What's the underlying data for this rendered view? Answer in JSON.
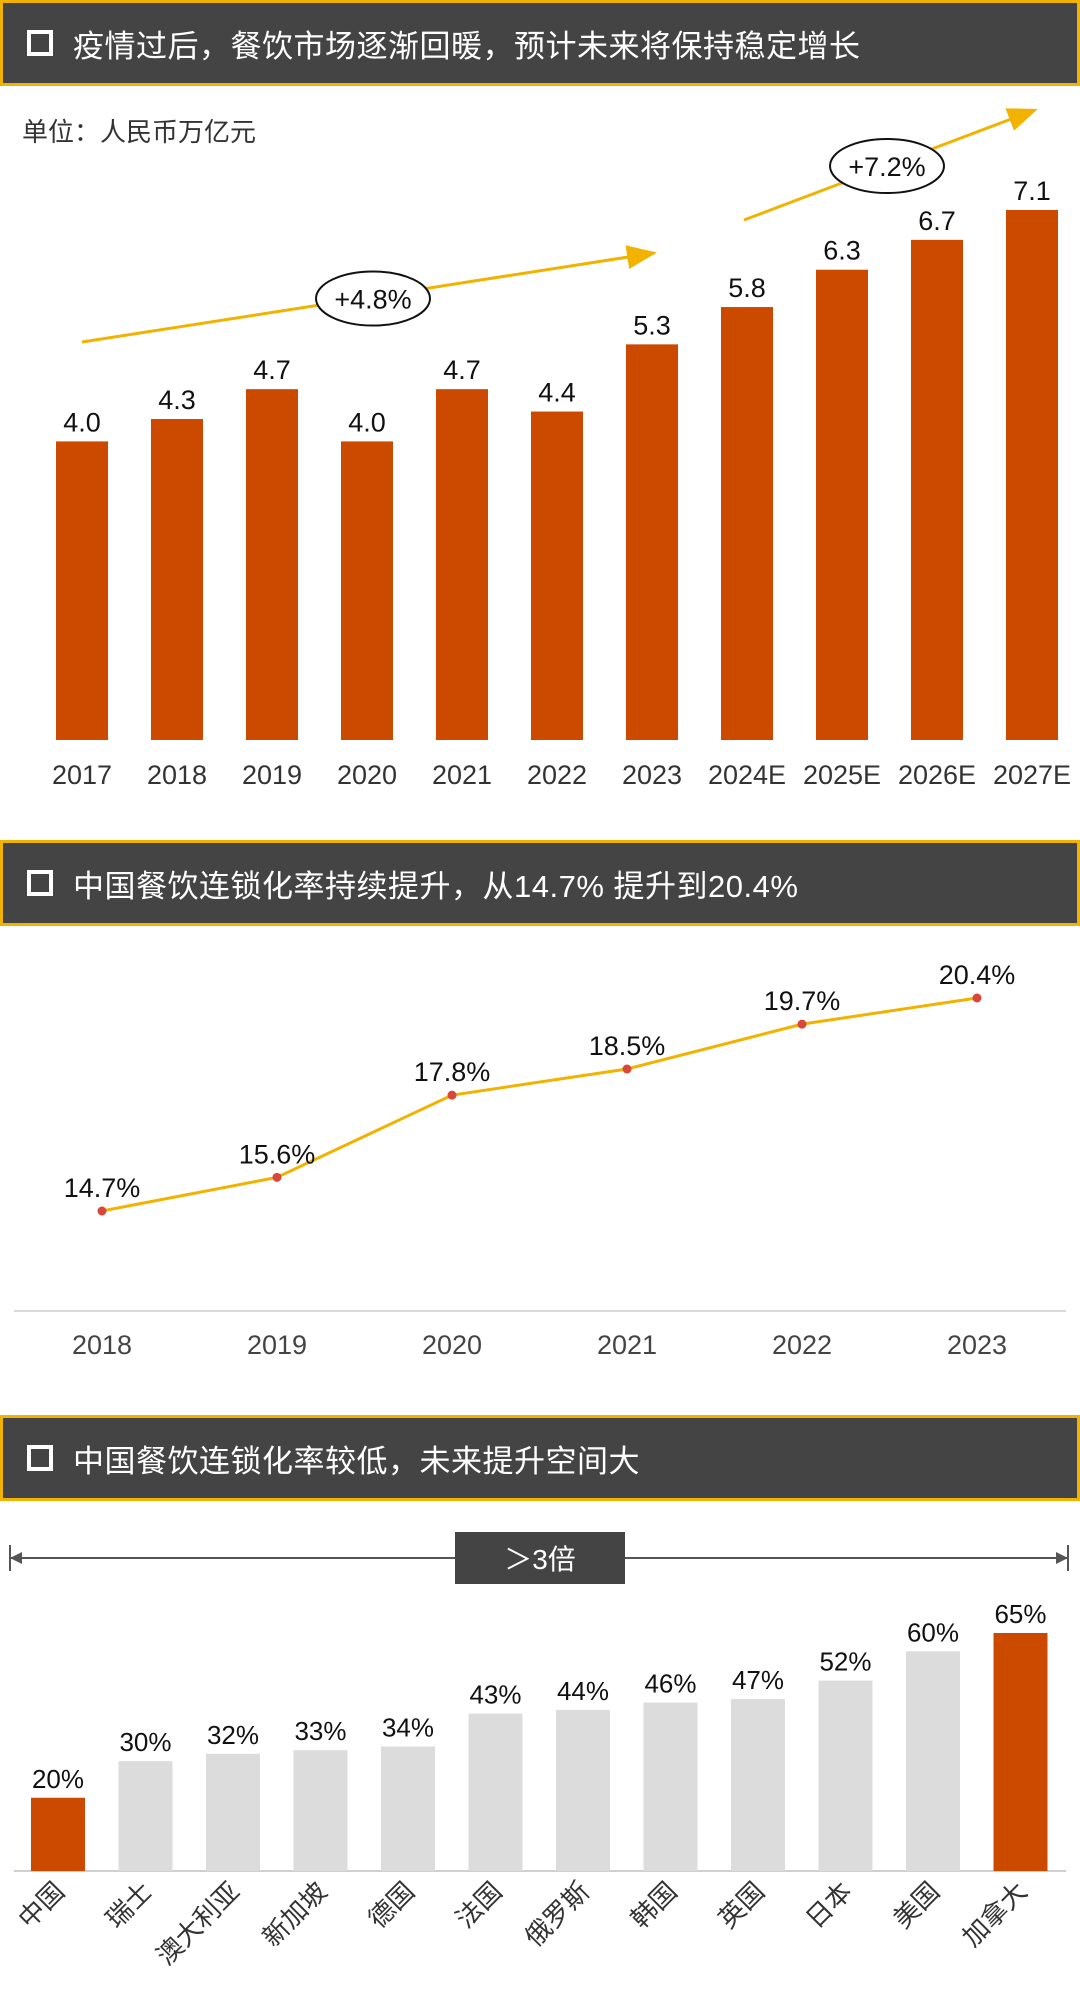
{
  "sections": [
    {
      "title": "疫情过后，餐饮市场逐渐回暖，预计未来将保持稳定增长"
    },
    {
      "title": "中国餐饮连锁化率持续提升，从14.7% 提升到20.4%"
    },
    {
      "title": "中国餐饮连锁化率较低，未来提升空间大"
    }
  ],
  "unit": "单位：人民币万亿元",
  "multiplier_label": "＞3倍",
  "colors": {
    "orange": "#cc4a00",
    "grey_bar": "#dcdcdc",
    "line": "#f2b200",
    "dot": "#d9463a",
    "header_bg": "#444444"
  },
  "chart_data": [
    {
      "type": "bar",
      "title": "疫情过后，餐饮市场逐渐回暖，预计未来将保持稳定增长",
      "ylabel": "单位：人民币万亿元",
      "categories": [
        "2017",
        "2018",
        "2019",
        "2020",
        "2021",
        "2022",
        "2023",
        "2024E",
        "2025E",
        "2026E",
        "2027E"
      ],
      "values": [
        4.0,
        4.3,
        4.7,
        4.0,
        4.7,
        4.4,
        5.3,
        5.8,
        6.3,
        6.7,
        7.1
      ],
      "labels": [
        "4.0",
        "4.3",
        "4.7",
        "4.0",
        "4.7",
        "4.4",
        "5.3",
        "5.8",
        "6.3",
        "6.7",
        "7.1"
      ],
      "ylim": [
        0,
        7.1
      ],
      "annotations": [
        {
          "text": "+4.8%",
          "from": "2017",
          "to": "2023"
        },
        {
          "text": "+7.2%",
          "from": "2023",
          "to": "2027E"
        }
      ]
    },
    {
      "type": "line",
      "title": "中国餐饮连锁化率持续提升，从14.7% 提升到20.4%",
      "categories": [
        "2018",
        "2019",
        "2020",
        "2021",
        "2022",
        "2023"
      ],
      "values": [
        14.7,
        15.6,
        17.8,
        18.5,
        19.7,
        20.4
      ],
      "labels": [
        "14.7%",
        "15.6%",
        "17.8%",
        "18.5%",
        "19.7%",
        "20.4%"
      ],
      "ylim": [
        12.5,
        21.5
      ]
    },
    {
      "type": "bar",
      "title": "中国餐饮连锁化率较低，未来提升空间大",
      "categories": [
        "中国",
        "瑞士",
        "澳大利亚",
        "新加坡",
        "德国",
        "法国",
        "俄罗斯",
        "韩国",
        "英国",
        "日本",
        "美国",
        "加拿大"
      ],
      "values": [
        20,
        30,
        32,
        33,
        34,
        43,
        44,
        46,
        47,
        52,
        60,
        65
      ],
      "labels": [
        "20%",
        "30%",
        "32%",
        "33%",
        "34%",
        "43%",
        "44%",
        "46%",
        "47%",
        "52%",
        "60%",
        "65%"
      ],
      "highlight": [
        "中国",
        "加拿大"
      ],
      "ylim": [
        0,
        65
      ]
    }
  ]
}
